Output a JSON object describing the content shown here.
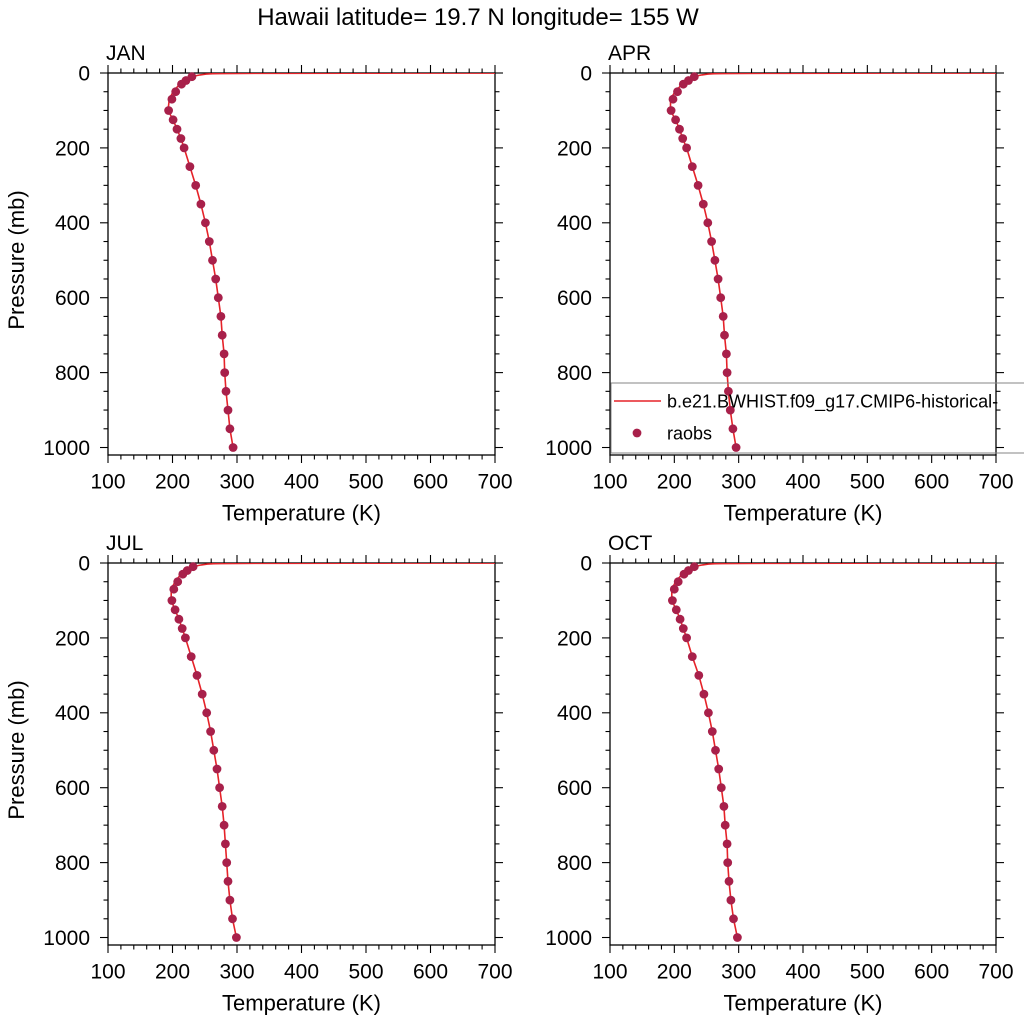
{
  "title": "Hawaii  latitude= 19.7 N longitude= 155 W",
  "colors": {
    "model_line": "#e62228",
    "raobs_dot": "#a8204a",
    "axis": "#000000",
    "legend_border": "#848484",
    "background": "#ffffff"
  },
  "legend": {
    "model_label": "b.e21.BWHIST.f09_g17.CMIP6-historical-",
    "raobs_label": "raobs"
  },
  "axes": {
    "xlabel": "Temperature (K)",
    "ylabel": "Pressure (mb)",
    "xlim": [
      100,
      700
    ],
    "ylim": [
      0,
      1020
    ],
    "xticks": [
      100,
      200,
      300,
      400,
      500,
      600,
      700
    ],
    "yticks": [
      0,
      200,
      400,
      600,
      800,
      1000
    ],
    "x_minor_step": 20,
    "y_minor_step": 50
  },
  "chart_data": [
    {
      "month": "JAN",
      "type": "line",
      "raobs": {
        "pressure": [
          10,
          20,
          30,
          50,
          70,
          100,
          125,
          150,
          175,
          200,
          250,
          300,
          350,
          400,
          450,
          500,
          550,
          600,
          650,
          700,
          750,
          800,
          850,
          900,
          950,
          1000
        ],
        "temperature": [
          230,
          221,
          214,
          205,
          199,
          194,
          201,
          207,
          213,
          218,
          227,
          236,
          244,
          251,
          257,
          262,
          267,
          271,
          275,
          277,
          280,
          281,
          283,
          286,
          289,
          294
        ]
      },
      "model": {
        "pressure": [
          0.25,
          0.3,
          0.4,
          0.5,
          0.7,
          1,
          1.5,
          2,
          3,
          5,
          7,
          10,
          20,
          30,
          50,
          70,
          100,
          125,
          150,
          175,
          200,
          250,
          300,
          350,
          400,
          450,
          500,
          550,
          600,
          650,
          700,
          750,
          800,
          850,
          900,
          950,
          1000
        ],
        "temperature": [
          720,
          700,
          560,
          470,
          370,
          305,
          275,
          262,
          252,
          243,
          237,
          229,
          219,
          211,
          201,
          195,
          193,
          201,
          207,
          213,
          218,
          227,
          236,
          244,
          251,
          257,
          262,
          267,
          271,
          275,
          277,
          280,
          281,
          283,
          286,
          289,
          294
        ]
      }
    },
    {
      "month": "APR",
      "type": "line",
      "raobs": {
        "pressure": [
          10,
          20,
          30,
          50,
          70,
          100,
          125,
          150,
          175,
          200,
          250,
          300,
          350,
          400,
          450,
          500,
          550,
          600,
          650,
          700,
          750,
          800,
          850,
          900,
          950,
          1000
        ],
        "temperature": [
          231,
          222,
          214,
          205,
          198,
          195,
          202,
          208,
          213,
          219,
          228,
          237,
          245,
          252,
          258,
          263,
          268,
          272,
          276,
          278,
          281,
          282,
          284,
          287,
          291,
          296
        ]
      },
      "model": {
        "pressure": [
          0.25,
          0.3,
          0.4,
          0.5,
          0.7,
          1,
          1.5,
          2,
          3,
          5,
          7,
          10,
          20,
          30,
          50,
          70,
          100,
          125,
          150,
          175,
          200,
          250,
          300,
          350,
          400,
          450,
          500,
          550,
          600,
          650,
          700,
          750,
          800,
          850,
          900,
          950,
          1000
        ],
        "temperature": [
          720,
          700,
          560,
          470,
          370,
          305,
          275,
          262,
          252,
          243,
          237,
          230,
          220,
          212,
          201,
          194,
          194,
          202,
          208,
          213,
          219,
          228,
          237,
          245,
          252,
          258,
          263,
          268,
          272,
          276,
          278,
          281,
          282,
          284,
          287,
          291,
          296
        ]
      }
    },
    {
      "month": "JUL",
      "type": "line",
      "raobs": {
        "pressure": [
          10,
          20,
          30,
          50,
          70,
          100,
          125,
          150,
          175,
          200,
          250,
          300,
          350,
          400,
          450,
          500,
          550,
          600,
          650,
          700,
          750,
          800,
          850,
          900,
          950,
          1000
        ],
        "temperature": [
          232,
          223,
          216,
          208,
          202,
          199,
          204,
          210,
          215,
          220,
          229,
          238,
          246,
          253,
          259,
          264,
          269,
          273,
          277,
          280,
          282,
          284,
          286,
          289,
          293,
          299
        ]
      },
      "model": {
        "pressure": [
          0.25,
          0.3,
          0.4,
          0.5,
          0.7,
          1,
          1.5,
          2,
          3,
          5,
          7,
          10,
          20,
          30,
          50,
          70,
          100,
          125,
          150,
          175,
          200,
          250,
          300,
          350,
          400,
          450,
          500,
          550,
          600,
          650,
          700,
          750,
          800,
          850,
          900,
          950,
          1000
        ],
        "temperature": [
          720,
          700,
          560,
          470,
          370,
          305,
          276,
          264,
          254,
          245,
          239,
          231,
          221,
          213,
          204,
          198,
          198,
          204,
          210,
          215,
          220,
          229,
          238,
          246,
          253,
          259,
          264,
          269,
          273,
          277,
          280,
          282,
          284,
          286,
          289,
          293,
          299
        ]
      }
    },
    {
      "month": "OCT",
      "type": "line",
      "raobs": {
        "pressure": [
          10,
          20,
          30,
          50,
          70,
          100,
          125,
          150,
          175,
          200,
          250,
          300,
          350,
          400,
          450,
          500,
          550,
          600,
          650,
          700,
          750,
          800,
          850,
          900,
          950,
          1000
        ],
        "temperature": [
          231,
          222,
          215,
          206,
          200,
          197,
          203,
          209,
          214,
          219,
          228,
          238,
          246,
          253,
          259,
          264,
          269,
          273,
          277,
          279,
          282,
          283,
          285,
          288,
          292,
          298
        ]
      },
      "model": {
        "pressure": [
          0.25,
          0.3,
          0.4,
          0.5,
          0.7,
          1,
          1.5,
          2,
          3,
          5,
          7,
          10,
          20,
          30,
          50,
          70,
          100,
          125,
          150,
          175,
          200,
          250,
          300,
          350,
          400,
          450,
          500,
          550,
          600,
          650,
          700,
          750,
          800,
          850,
          900,
          950,
          1000
        ],
        "temperature": [
          720,
          700,
          560,
          470,
          370,
          305,
          275,
          263,
          253,
          244,
          238,
          230,
          220,
          212,
          202,
          196,
          196,
          203,
          209,
          214,
          219,
          228,
          238,
          246,
          253,
          259,
          264,
          269,
          273,
          277,
          279,
          282,
          283,
          285,
          288,
          292,
          298
        ]
      }
    }
  ]
}
